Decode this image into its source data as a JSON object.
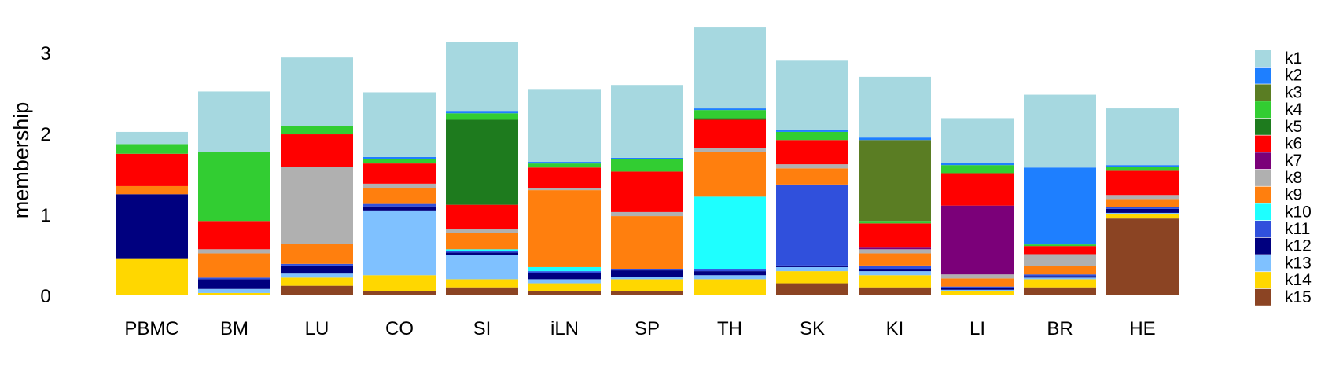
{
  "chart_data": {
    "type": "bar",
    "stacked": true,
    "ylabel": "membership",
    "ylim": [
      0,
      3.3
    ],
    "yticks": [
      0,
      1,
      2,
      3
    ],
    "grid": false,
    "legend_position": "right",
    "categories": [
      "PBMC",
      "BM",
      "LU",
      "CO",
      "SI",
      "iLN",
      "SP",
      "TH",
      "SK",
      "KI",
      "LI",
      "BR",
      "HE"
    ],
    "series": [
      {
        "name": "k1",
        "color": "#A6D8E0",
        "values": [
          0.15,
          0.75,
          0.85,
          0.8,
          0.85,
          0.9,
          0.9,
          1.0,
          0.85,
          0.75,
          0.55,
          0.9,
          0.7
        ]
      },
      {
        "name": "k2",
        "color": "#1E7FFF",
        "values": [
          0.0,
          0.0,
          0.0,
          0.03,
          0.03,
          0.02,
          0.02,
          0.02,
          0.03,
          0.03,
          0.03,
          0.95,
          0.02
        ]
      },
      {
        "name": "k3",
        "color": "#5A7D23",
        "values": [
          0.0,
          0.0,
          0.0,
          0.0,
          0.0,
          0.0,
          0.0,
          0.0,
          0.0,
          1.0,
          0.0,
          0.0,
          0.0
        ]
      },
      {
        "name": "k4",
        "color": "#32CD32",
        "values": [
          0.12,
          0.85,
          0.1,
          0.05,
          0.08,
          0.05,
          0.15,
          0.1,
          0.1,
          0.03,
          0.1,
          0.02,
          0.05
        ]
      },
      {
        "name": "k5",
        "color": "#1E7B1E",
        "values": [
          0.0,
          0.0,
          0.0,
          0.0,
          1.05,
          0.0,
          0.0,
          0.02,
          0.0,
          0.0,
          0.0,
          0.0,
          0.0
        ]
      },
      {
        "name": "k6",
        "color": "#FF0000",
        "values": [
          0.4,
          0.35,
          0.4,
          0.25,
          0.3,
          0.25,
          0.5,
          0.35,
          0.3,
          0.3,
          0.4,
          0.1,
          0.3
        ]
      },
      {
        "name": "k7",
        "color": "#7B0079",
        "values": [
          0.0,
          0.0,
          0.0,
          0.0,
          0.0,
          0.0,
          0.0,
          0.0,
          0.0,
          0.02,
          0.85,
          0.0,
          0.0
        ]
      },
      {
        "name": "k8",
        "color": "#B0B0B0",
        "values": [
          0.0,
          0.05,
          0.95,
          0.05,
          0.05,
          0.03,
          0.05,
          0.05,
          0.05,
          0.05,
          0.05,
          0.15,
          0.05
        ]
      },
      {
        "name": "k9",
        "color": "#FF7F0E",
        "values": [
          0.1,
          0.3,
          0.25,
          0.2,
          0.2,
          0.95,
          0.65,
          0.55,
          0.2,
          0.15,
          0.1,
          0.1,
          0.1
        ]
      },
      {
        "name": "k10",
        "color": "#1EFFFF",
        "values": [
          0.0,
          0.0,
          0.0,
          0.0,
          0.02,
          0.05,
          0.0,
          0.9,
          0.0,
          0.0,
          0.0,
          0.0,
          0.0
        ]
      },
      {
        "name": "k11",
        "color": "#3050DC",
        "values": [
          0.0,
          0.02,
          0.02,
          0.03,
          0.02,
          0.02,
          0.02,
          0.02,
          1.0,
          0.05,
          0.02,
          0.02,
          0.02
        ]
      },
      {
        "name": "k12",
        "color": "#00007F",
        "values": [
          0.8,
          0.12,
          0.1,
          0.05,
          0.03,
          0.08,
          0.08,
          0.05,
          0.02,
          0.02,
          0.02,
          0.02,
          0.05
        ]
      },
      {
        "name": "k13",
        "color": "#7FC1FF",
        "values": [
          0.0,
          0.05,
          0.05,
          0.8,
          0.3,
          0.05,
          0.03,
          0.05,
          0.05,
          0.05,
          0.02,
          0.02,
          0.02
        ]
      },
      {
        "name": "k14",
        "color": "#FFD700",
        "values": [
          0.45,
          0.03,
          0.1,
          0.2,
          0.1,
          0.1,
          0.15,
          0.2,
          0.15,
          0.15,
          0.05,
          0.1,
          0.05
        ]
      },
      {
        "name": "k15",
        "color": "#8B4423",
        "values": [
          0.0,
          0.0,
          0.12,
          0.05,
          0.1,
          0.05,
          0.05,
          0.0,
          0.15,
          0.1,
          0.0,
          0.1,
          0.95
        ]
      }
    ]
  }
}
